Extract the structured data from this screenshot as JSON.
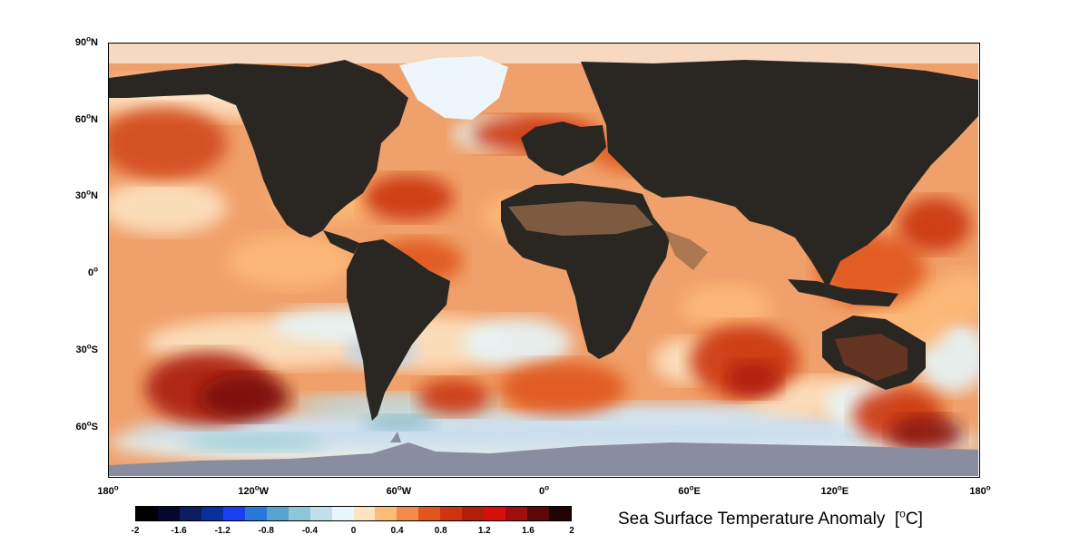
{
  "map": {
    "lat_ticks": [
      {
        "value": 90,
        "deg": "90",
        "hemi": "N"
      },
      {
        "value": 60,
        "deg": "60",
        "hemi": "N"
      },
      {
        "value": 30,
        "deg": "30",
        "hemi": "N"
      },
      {
        "value": 0,
        "deg": "0",
        "hemi": ""
      },
      {
        "value": -30,
        "deg": "30",
        "hemi": "S"
      },
      {
        "value": -60,
        "deg": "60",
        "hemi": "S"
      }
    ],
    "lon_ticks": [
      {
        "value": -180,
        "deg": "180",
        "hemi": ""
      },
      {
        "value": -120,
        "deg": "120",
        "hemi": "W"
      },
      {
        "value": -60,
        "deg": "60",
        "hemi": "W"
      },
      {
        "value": 0,
        "deg": "0",
        "hemi": ""
      },
      {
        "value": 60,
        "deg": "60",
        "hemi": "E"
      },
      {
        "value": 120,
        "deg": "120",
        "hemi": "E"
      },
      {
        "value": 180,
        "deg": "180",
        "hemi": ""
      }
    ],
    "degree_symbol": "o",
    "extent": {
      "lon": [
        -180,
        180
      ],
      "lat": [
        -80,
        90
      ]
    },
    "colors": {
      "ocean_base": "#f0a06a",
      "land": "#2a2621",
      "antarctica": "#8a8da0",
      "ice": "#eef6fb",
      "desert": "#9a6e4c"
    }
  },
  "colorbar": {
    "title_text": "Sea Surface Temperature Anomaly",
    "unit_open": "[",
    "unit_sup": "o",
    "unit_letter": "C]",
    "ticks": [
      "-2",
      "-1.6",
      "-1.2",
      "-0.8",
      "-0.4",
      "0",
      "0.4",
      "0.8",
      "1.2",
      "1.6",
      "2"
    ],
    "range": [
      -2,
      2
    ],
    "colors": [
      "#000000",
      "#07072e",
      "#0b1d5e",
      "#0a2e9c",
      "#1a3ff0",
      "#2a78d8",
      "#5aa2cf",
      "#8fc5d8",
      "#bfe0e8",
      "#e6f6fa",
      "#fde3c2",
      "#fdba78",
      "#f28a4c",
      "#e0561f",
      "#cc3510",
      "#b01e0c",
      "#d60f0f",
      "#9e0e0e",
      "#5c0808",
      "#200404"
    ]
  }
}
